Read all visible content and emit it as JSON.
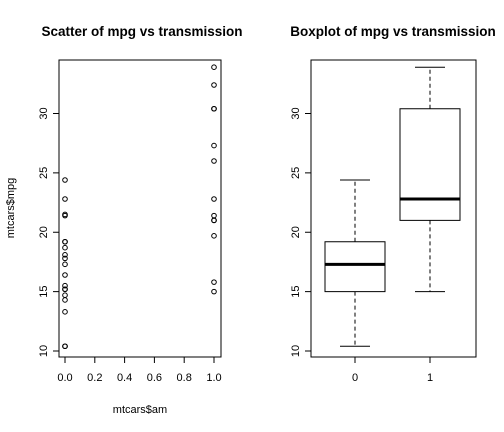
{
  "chart_data": [
    {
      "type": "scatter",
      "title": "Scatter of mpg vs transmission",
      "xlabel": "mtcars$am",
      "ylabel": "mtcars$mpg",
      "xlim": [
        0,
        1
      ],
      "ylim": [
        10,
        34
      ],
      "x_ticks": [
        "0.0",
        "0.2",
        "0.4",
        "0.6",
        "0.8",
        "1.0"
      ],
      "y_ticks": [
        "10",
        "15",
        "20",
        "25",
        "30"
      ],
      "grid": false,
      "legend": "none",
      "point_style": "open-circle",
      "series": [
        {
          "x": [
            0,
            0,
            0,
            0,
            0,
            0,
            0,
            0,
            0,
            0,
            0,
            0,
            0,
            0,
            0,
            0,
            0,
            0,
            0,
            1,
            1,
            1,
            1,
            1,
            1,
            1,
            1,
            1,
            1,
            1,
            1,
            1
          ],
          "y": [
            21.4,
            18.7,
            18.1,
            14.3,
            24.4,
            22.8,
            19.2,
            17.8,
            16.4,
            17.3,
            15.2,
            10.4,
            10.4,
            14.7,
            21.5,
            15.5,
            15.2,
            13.3,
            19.2,
            21.0,
            21.0,
            22.8,
            32.4,
            30.4,
            33.9,
            27.3,
            26.0,
            30.4,
            15.8,
            19.7,
            15.0,
            21.4
          ]
        }
      ]
    },
    {
      "type": "boxplot",
      "title": "Boxplot of mpg vs transmission",
      "xlabel": "",
      "ylabel": "",
      "ylim": [
        10,
        34
      ],
      "y_ticks": [
        "10",
        "15",
        "20",
        "25",
        "30"
      ],
      "categories": [
        "0",
        "1"
      ],
      "boxes": [
        {
          "min": 10.4,
          "q1": 15.0,
          "median": 17.3,
          "q3": 19.2,
          "max": 24.4
        },
        {
          "min": 15.0,
          "q1": 21.0,
          "median": 22.8,
          "q3": 30.4,
          "max": 33.9
        }
      ],
      "grid": false,
      "legend": "none"
    }
  ]
}
